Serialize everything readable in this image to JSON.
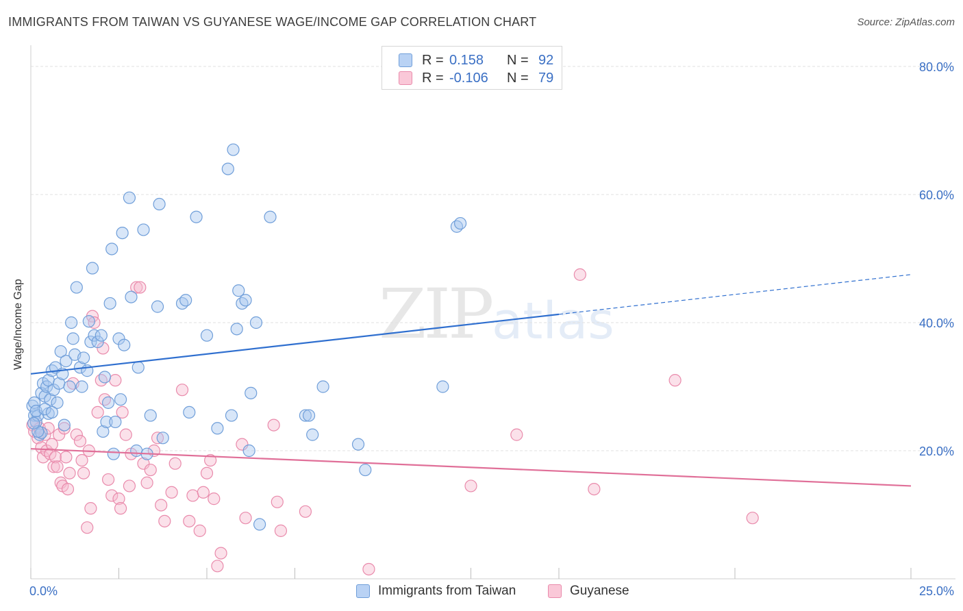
{
  "header": {
    "title": "IMMIGRANTS FROM TAIWAN VS GUYANESE WAGE/INCOME GAP CORRELATION CHART",
    "source": "Source: ZipAtlas.com"
  },
  "watermark": {
    "zip": "ZIP",
    "atlas": "atlas"
  },
  "legend": {
    "series": [
      {
        "r_label": "R =",
        "r_value": "0.158",
        "n_label": "N =",
        "n_value": "92"
      },
      {
        "r_label": "R =",
        "r_value": "-0.106",
        "n_label": "N =",
        "n_value": "79"
      }
    ]
  },
  "bottom_legend": {
    "taiwan": "Immigrants from Taiwan",
    "guyanese": "Guyanese"
  },
  "colors": {
    "taiwan_fill": "#a9c8f0",
    "taiwan_stroke": "#6f9ed9",
    "taiwan_line": "#2f6fcf",
    "guyanese_fill": "#f7bcd0",
    "guyanese_stroke": "#e98aab",
    "guyanese_line": "#e06f98",
    "grid": "#e2e2e2",
    "tick_text": "#3a6fc4"
  },
  "chart_data": {
    "type": "scatter",
    "title": "IMMIGRANTS FROM TAIWAN VS GUYANESE WAGE/INCOME GAP CORRELATION CHART",
    "xlabel": "",
    "ylabel": "Wage/Income Gap",
    "xlim": [
      0,
      25
    ],
    "ylim": [
      0,
      80
    ],
    "x_tick_labels": [
      "0.0%",
      "25.0%"
    ],
    "y_ticks": [
      20,
      40,
      60,
      80
    ],
    "y_tick_labels": [
      "20.0%",
      "40.0%",
      "60.0%",
      "80.0%"
    ],
    "series": [
      {
        "name": "Immigrants from Taiwan",
        "r": 0.158,
        "n": 92,
        "trend": {
          "x0": 0,
          "y0": 32.0,
          "x1": 15,
          "y1": 41.3,
          "dashed_to_x": 25,
          "dashed_to_y": 47.5
        },
        "points": [
          [
            0.1,
            25.5
          ],
          [
            0.15,
            24.5
          ],
          [
            0.2,
            25.5
          ],
          [
            0.05,
            27.0
          ],
          [
            0.25,
            22.5
          ],
          [
            0.3,
            29.0
          ],
          [
            0.35,
            30.5
          ],
          [
            0.4,
            28.5
          ],
          [
            0.45,
            30.0
          ],
          [
            0.5,
            31.0
          ],
          [
            0.55,
            28.0
          ],
          [
            0.6,
            32.5
          ],
          [
            0.65,
            29.5
          ],
          [
            0.7,
            33.0
          ],
          [
            0.75,
            27.5
          ],
          [
            0.8,
            30.5
          ],
          [
            0.85,
            35.5
          ],
          [
            0.9,
            32.0
          ],
          [
            0.95,
            24.0
          ],
          [
            1.0,
            34.0
          ],
          [
            1.1,
            30.0
          ],
          [
            1.15,
            40.0
          ],
          [
            1.2,
            37.5
          ],
          [
            1.25,
            35.0
          ],
          [
            1.3,
            45.5
          ],
          [
            1.4,
            33.0
          ],
          [
            1.45,
            30.0
          ],
          [
            1.5,
            34.5
          ],
          [
            1.6,
            32.5
          ],
          [
            1.65,
            40.2
          ],
          [
            1.7,
            37.0
          ],
          [
            1.75,
            48.5
          ],
          [
            1.8,
            38.0
          ],
          [
            1.9,
            37.0
          ],
          [
            2.0,
            38.0
          ],
          [
            2.05,
            23.0
          ],
          [
            2.1,
            31.5
          ],
          [
            2.15,
            24.5
          ],
          [
            2.2,
            27.5
          ],
          [
            2.25,
            43.0
          ],
          [
            2.3,
            51.5
          ],
          [
            2.35,
            19.5
          ],
          [
            2.4,
            24.5
          ],
          [
            2.5,
            37.5
          ],
          [
            2.55,
            28.0
          ],
          [
            2.6,
            54.0
          ],
          [
            2.65,
            36.5
          ],
          [
            2.8,
            59.5
          ],
          [
            2.85,
            44.0
          ],
          [
            3.0,
            20.0
          ],
          [
            3.05,
            33.0
          ],
          [
            3.2,
            54.5
          ],
          [
            3.3,
            19.5
          ],
          [
            3.4,
            25.5
          ],
          [
            3.6,
            42.5
          ],
          [
            3.65,
            58.5
          ],
          [
            3.75,
            22.0
          ],
          [
            4.3,
            43.0
          ],
          [
            4.4,
            43.5
          ],
          [
            4.5,
            26.0
          ],
          [
            4.7,
            56.5
          ],
          [
            5.0,
            38.0
          ],
          [
            5.3,
            23.5
          ],
          [
            5.6,
            64.0
          ],
          [
            5.7,
            25.5
          ],
          [
            5.75,
            67.0
          ],
          [
            5.85,
            39.0
          ],
          [
            5.9,
            45.0
          ],
          [
            6.0,
            43.0
          ],
          [
            6.1,
            43.5
          ],
          [
            6.2,
            20.0
          ],
          [
            6.25,
            29.0
          ],
          [
            6.4,
            40.0
          ],
          [
            6.5,
            8.5
          ],
          [
            6.8,
            56.5
          ],
          [
            7.8,
            25.5
          ],
          [
            7.9,
            25.5
          ],
          [
            8.0,
            22.5
          ],
          [
            8.3,
            30.0
          ],
          [
            9.3,
            21.0
          ],
          [
            9.5,
            17.0
          ],
          [
            11.7,
            30.0
          ],
          [
            12.1,
            55.0
          ],
          [
            12.2,
            55.5
          ],
          [
            0.3,
            22.8
          ],
          [
            0.5,
            25.8
          ],
          [
            0.2,
            23.0
          ],
          [
            0.1,
            27.5
          ],
          [
            0.15,
            26.2
          ],
          [
            0.4,
            26.5
          ],
          [
            0.6,
            26.0
          ],
          [
            0.08,
            24.3
          ]
        ]
      },
      {
        "name": "Guyanese",
        "r": -0.106,
        "n": 79,
        "trend": {
          "x0": 0,
          "y0": 20.3,
          "x1": 25,
          "y1": 14.5
        },
        "points": [
          [
            0.05,
            24.0
          ],
          [
            0.1,
            23.0
          ],
          [
            0.15,
            24.5
          ],
          [
            0.2,
            22.0
          ],
          [
            0.25,
            23.5
          ],
          [
            0.3,
            20.5
          ],
          [
            0.35,
            19.0
          ],
          [
            0.4,
            22.5
          ],
          [
            0.45,
            20.0
          ],
          [
            0.5,
            23.5
          ],
          [
            0.55,
            19.5
          ],
          [
            0.6,
            21.0
          ],
          [
            0.65,
            17.5
          ],
          [
            0.7,
            19.0
          ],
          [
            0.75,
            17.5
          ],
          [
            0.8,
            22.5
          ],
          [
            0.85,
            15.0
          ],
          [
            0.9,
            14.5
          ],
          [
            0.95,
            23.5
          ],
          [
            1.0,
            19.0
          ],
          [
            1.05,
            14.0
          ],
          [
            1.1,
            16.5
          ],
          [
            1.2,
            30.5
          ],
          [
            1.3,
            22.5
          ],
          [
            1.4,
            21.5
          ],
          [
            1.45,
            18.5
          ],
          [
            1.5,
            16.5
          ],
          [
            1.6,
            8.0
          ],
          [
            1.65,
            20.0
          ],
          [
            1.7,
            11.0
          ],
          [
            1.75,
            41.0
          ],
          [
            1.8,
            40.0
          ],
          [
            1.9,
            26.0
          ],
          [
            2.0,
            31.0
          ],
          [
            2.05,
            36.0
          ],
          [
            2.1,
            28.0
          ],
          [
            2.2,
            15.5
          ],
          [
            2.3,
            13.0
          ],
          [
            2.4,
            31.0
          ],
          [
            2.5,
            12.5
          ],
          [
            2.55,
            11.0
          ],
          [
            2.6,
            26.0
          ],
          [
            2.7,
            22.5
          ],
          [
            2.8,
            14.5
          ],
          [
            2.85,
            19.5
          ],
          [
            3.0,
            45.5
          ],
          [
            3.1,
            45.5
          ],
          [
            3.2,
            18.0
          ],
          [
            3.3,
            15.0
          ],
          [
            3.4,
            17.0
          ],
          [
            3.5,
            20.0
          ],
          [
            3.6,
            22.0
          ],
          [
            3.7,
            11.5
          ],
          [
            3.8,
            9.0
          ],
          [
            4.0,
            13.5
          ],
          [
            4.1,
            18.0
          ],
          [
            4.3,
            29.5
          ],
          [
            4.5,
            9.0
          ],
          [
            4.6,
            13.0
          ],
          [
            4.8,
            7.5
          ],
          [
            4.9,
            13.5
          ],
          [
            5.0,
            16.5
          ],
          [
            5.1,
            18.5
          ],
          [
            5.2,
            12.5
          ],
          [
            5.3,
            2.0
          ],
          [
            5.4,
            4.0
          ],
          [
            6.0,
            21.0
          ],
          [
            6.1,
            9.5
          ],
          [
            6.9,
            24.0
          ],
          [
            7.0,
            12.0
          ],
          [
            7.1,
            7.5
          ],
          [
            7.8,
            10.5
          ],
          [
            9.6,
            1.5
          ],
          [
            12.5,
            14.5
          ],
          [
            13.8,
            22.5
          ],
          [
            15.6,
            47.5
          ],
          [
            16.0,
            14.0
          ],
          [
            18.3,
            31.0
          ],
          [
            20.5,
            9.5
          ]
        ]
      }
    ]
  }
}
